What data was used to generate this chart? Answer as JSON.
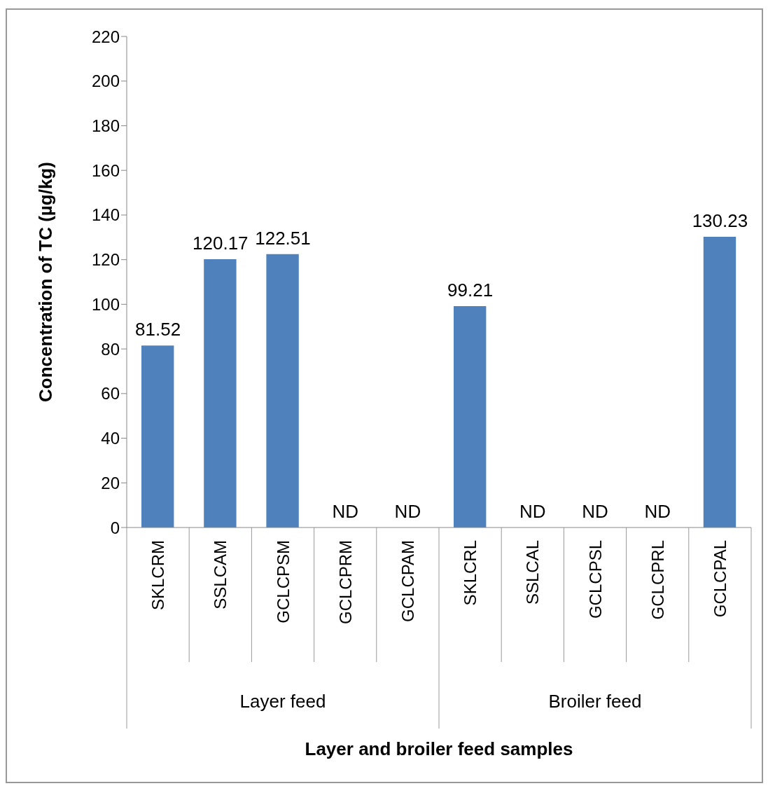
{
  "chart_data": {
    "type": "bar",
    "ylabel": "Concentration of TC (µg/kg)",
    "categories": [
      "SKLCRM",
      "SSLCAM",
      "GCLCPSM",
      "GCLCPRM",
      "GCLCPAM",
      "SKLCRL",
      "SSLCAL",
      "GCLCPSL",
      "GCLCPRL",
      "GCLCPAL"
    ],
    "values": [
      81.52,
      120.17,
      122.51,
      null,
      null,
      99.21,
      null,
      null,
      null,
      130.23
    ],
    "value_labels": [
      "81.52",
      "120.17",
      "122.51",
      "ND",
      "ND",
      "99.21",
      "ND",
      "ND",
      "ND",
      "130.23"
    ],
    "color": "#4f81bd",
    "ylim": [
      0,
      220
    ],
    "yticks": [
      0,
      20,
      40,
      60,
      80,
      100,
      120,
      140,
      160,
      180,
      200,
      220
    ],
    "annotations": [
      "Layer feed",
      "Broiler feed",
      "Layer and broiler feed samples"
    ]
  }
}
